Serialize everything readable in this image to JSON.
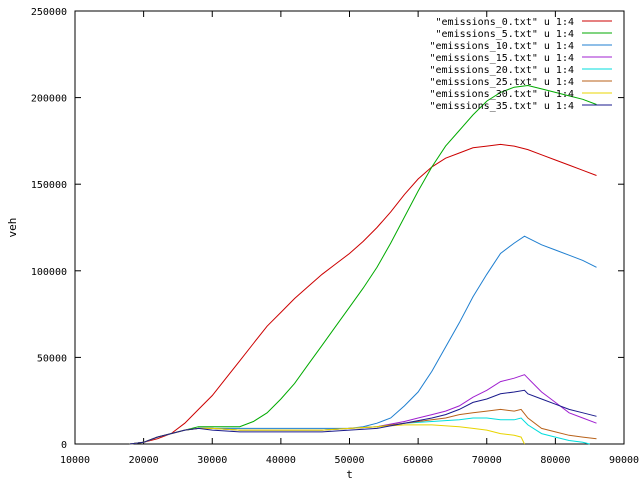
{
  "chart_data": {
    "type": "line",
    "title": "",
    "xlabel": "t",
    "ylabel": "veh",
    "xlim": [
      10000,
      90000
    ],
    "ylim": [
      0,
      250000
    ],
    "xticks": [
      10000,
      20000,
      30000,
      40000,
      50000,
      60000,
      70000,
      80000,
      90000
    ],
    "yticks": [
      0,
      50000,
      100000,
      150000,
      200000,
      250000
    ],
    "grid": false,
    "legend_position": "top-right",
    "series": [
      {
        "name": "\"emissions_0.txt\" u 1:4",
        "color": "#cc0000",
        "points": [
          [
            18000,
            0
          ],
          [
            20000,
            1000
          ],
          [
            22000,
            3000
          ],
          [
            24000,
            6000
          ],
          [
            26000,
            12000
          ],
          [
            28000,
            20000
          ],
          [
            30000,
            28000
          ],
          [
            32000,
            38000
          ],
          [
            34000,
            48000
          ],
          [
            36000,
            58000
          ],
          [
            38000,
            68000
          ],
          [
            40000,
            76000
          ],
          [
            42000,
            84000
          ],
          [
            44000,
            91000
          ],
          [
            46000,
            98000
          ],
          [
            48000,
            104000
          ],
          [
            50000,
            110000
          ],
          [
            52000,
            117000
          ],
          [
            54000,
            125000
          ],
          [
            56000,
            134000
          ],
          [
            58000,
            144000
          ],
          [
            60000,
            153000
          ],
          [
            62000,
            160000
          ],
          [
            64000,
            165000
          ],
          [
            66000,
            168000
          ],
          [
            68000,
            171000
          ],
          [
            70000,
            172000
          ],
          [
            72000,
            173000
          ],
          [
            74000,
            172000
          ],
          [
            76000,
            170000
          ],
          [
            78000,
            167000
          ],
          [
            80000,
            164000
          ],
          [
            82000,
            161000
          ],
          [
            84000,
            158000
          ],
          [
            86000,
            155000
          ]
        ]
      },
      {
        "name": "\"emissions_5.txt\" u 1:4",
        "color": "#00aa00",
        "points": [
          [
            18000,
            0
          ],
          [
            20000,
            1000
          ],
          [
            22000,
            4000
          ],
          [
            24000,
            6000
          ],
          [
            26000,
            8000
          ],
          [
            28000,
            10000
          ],
          [
            30000,
            10000
          ],
          [
            32000,
            10000
          ],
          [
            34000,
            10000
          ],
          [
            36000,
            13000
          ],
          [
            38000,
            18000
          ],
          [
            40000,
            26000
          ],
          [
            42000,
            35000
          ],
          [
            44000,
            46000
          ],
          [
            46000,
            57000
          ],
          [
            48000,
            68000
          ],
          [
            50000,
            79000
          ],
          [
            52000,
            90000
          ],
          [
            54000,
            102000
          ],
          [
            56000,
            116000
          ],
          [
            58000,
            131000
          ],
          [
            60000,
            146000
          ],
          [
            62000,
            160000
          ],
          [
            64000,
            172000
          ],
          [
            66000,
            181000
          ],
          [
            68000,
            190000
          ],
          [
            70000,
            198000
          ],
          [
            72000,
            203000
          ],
          [
            74000,
            206000
          ],
          [
            76000,
            207000
          ],
          [
            78000,
            205000
          ],
          [
            80000,
            203000
          ],
          [
            82000,
            201000
          ],
          [
            84000,
            199000
          ],
          [
            86000,
            196000
          ]
        ]
      },
      {
        "name": "\"emissions_10.txt\" u 1:4",
        "color": "#1f7fd0",
        "points": [
          [
            18000,
            0
          ],
          [
            20000,
            1000
          ],
          [
            22000,
            4000
          ],
          [
            24000,
            6000
          ],
          [
            26000,
            8000
          ],
          [
            28000,
            9000
          ],
          [
            30000,
            9000
          ],
          [
            34000,
            9000
          ],
          [
            40000,
            9000
          ],
          [
            46000,
            9000
          ],
          [
            50000,
            9000
          ],
          [
            52000,
            10000
          ],
          [
            54000,
            12000
          ],
          [
            56000,
            15000
          ],
          [
            58000,
            22000
          ],
          [
            60000,
            30000
          ],
          [
            62000,
            42000
          ],
          [
            64000,
            56000
          ],
          [
            66000,
            70000
          ],
          [
            68000,
            85000
          ],
          [
            70000,
            98000
          ],
          [
            72000,
            110000
          ],
          [
            74000,
            116000
          ],
          [
            75500,
            120000
          ],
          [
            76000,
            119000
          ],
          [
            78000,
            115000
          ],
          [
            80000,
            112000
          ],
          [
            82000,
            109000
          ],
          [
            84000,
            106000
          ],
          [
            86000,
            102000
          ]
        ]
      },
      {
        "name": "\"emissions_15.txt\" u 1:4",
        "color": "#a020d0",
        "points": [
          [
            18000,
            0
          ],
          [
            20000,
            1000
          ],
          [
            22000,
            4000
          ],
          [
            24000,
            6000
          ],
          [
            26000,
            8000
          ],
          [
            28000,
            9000
          ],
          [
            30000,
            9000
          ],
          [
            34000,
            8000
          ],
          [
            40000,
            8000
          ],
          [
            46000,
            8000
          ],
          [
            50000,
            9000
          ],
          [
            54000,
            10000
          ],
          [
            58000,
            13000
          ],
          [
            60000,
            15000
          ],
          [
            62000,
            17000
          ],
          [
            64000,
            19000
          ],
          [
            66000,
            22000
          ],
          [
            68000,
            27000
          ],
          [
            70000,
            31000
          ],
          [
            72000,
            36000
          ],
          [
            74000,
            38000
          ],
          [
            75500,
            40000
          ],
          [
            76000,
            38000
          ],
          [
            78000,
            30000
          ],
          [
            80000,
            24000
          ],
          [
            82000,
            18000
          ],
          [
            84000,
            15000
          ],
          [
            86000,
            12000
          ]
        ]
      },
      {
        "name": "\"emissions_20.txt\" u 1:4",
        "color": "#00dddd",
        "points": [
          [
            18000,
            0
          ],
          [
            20000,
            1000
          ],
          [
            22000,
            4000
          ],
          [
            24000,
            6000
          ],
          [
            26000,
            8000
          ],
          [
            28000,
            9000
          ],
          [
            30000,
            9000
          ],
          [
            34000,
            8000
          ],
          [
            40000,
            8000
          ],
          [
            46000,
            8000
          ],
          [
            50000,
            9000
          ],
          [
            54000,
            10000
          ],
          [
            58000,
            12000
          ],
          [
            62000,
            13000
          ],
          [
            66000,
            14000
          ],
          [
            68000,
            15000
          ],
          [
            70000,
            15000
          ],
          [
            72000,
            14000
          ],
          [
            74000,
            14000
          ],
          [
            75000,
            15000
          ],
          [
            76000,
            11000
          ],
          [
            78000,
            6000
          ],
          [
            80000,
            4000
          ],
          [
            82000,
            2000
          ],
          [
            84000,
            1000
          ],
          [
            85000,
            0
          ]
        ]
      },
      {
        "name": "\"emissions_25.txt\" u 1:4",
        "color": "#b8621a",
        "points": [
          [
            18000,
            0
          ],
          [
            20000,
            1000
          ],
          [
            22000,
            4000
          ],
          [
            24000,
            6000
          ],
          [
            26000,
            8000
          ],
          [
            28000,
            9000
          ],
          [
            30000,
            9000
          ],
          [
            34000,
            8000
          ],
          [
            40000,
            8000
          ],
          [
            46000,
            8000
          ],
          [
            50000,
            9000
          ],
          [
            54000,
            10000
          ],
          [
            58000,
            12000
          ],
          [
            62000,
            14000
          ],
          [
            64000,
            15000
          ],
          [
            66000,
            17000
          ],
          [
            68000,
            18000
          ],
          [
            70000,
            19000
          ],
          [
            72000,
            20000
          ],
          [
            74000,
            19000
          ],
          [
            75000,
            20000
          ],
          [
            76000,
            15000
          ],
          [
            78000,
            9000
          ],
          [
            80000,
            7000
          ],
          [
            82000,
            5000
          ],
          [
            84000,
            4000
          ],
          [
            86000,
            3000
          ]
        ]
      },
      {
        "name": "\"emissions_30.txt\" u 1:4",
        "color": "#e8d400",
        "points": [
          [
            18000,
            0
          ],
          [
            20000,
            1000
          ],
          [
            22000,
            4000
          ],
          [
            24000,
            6000
          ],
          [
            26000,
            8000
          ],
          [
            28000,
            9000
          ],
          [
            30000,
            9000
          ],
          [
            34000,
            8000
          ],
          [
            40000,
            8000
          ],
          [
            46000,
            8000
          ],
          [
            50000,
            9000
          ],
          [
            54000,
            10000
          ],
          [
            58000,
            11000
          ],
          [
            62000,
            11000
          ],
          [
            66000,
            10000
          ],
          [
            68000,
            9000
          ],
          [
            70000,
            8000
          ],
          [
            72000,
            6000
          ],
          [
            74000,
            5000
          ],
          [
            75000,
            4000
          ],
          [
            75500,
            0
          ]
        ]
      },
      {
        "name": "\"emissions_35.txt\" u 1:4",
        "color": "#1a1a8c",
        "points": [
          [
            18000,
            0
          ],
          [
            20000,
            1000
          ],
          [
            22000,
            4000
          ],
          [
            24000,
            6000
          ],
          [
            26000,
            8000
          ],
          [
            28000,
            9000
          ],
          [
            30000,
            8000
          ],
          [
            34000,
            7000
          ],
          [
            40000,
            7000
          ],
          [
            46000,
            7000
          ],
          [
            50000,
            8000
          ],
          [
            54000,
            9000
          ],
          [
            58000,
            12000
          ],
          [
            62000,
            15000
          ],
          [
            64000,
            17000
          ],
          [
            66000,
            20000
          ],
          [
            68000,
            24000
          ],
          [
            70000,
            26000
          ],
          [
            72000,
            29000
          ],
          [
            74000,
            30000
          ],
          [
            75500,
            31000
          ],
          [
            76000,
            29000
          ],
          [
            78000,
            26000
          ],
          [
            80000,
            23000
          ],
          [
            82000,
            20000
          ],
          [
            84000,
            18000
          ],
          [
            86000,
            16000
          ]
        ]
      }
    ]
  }
}
